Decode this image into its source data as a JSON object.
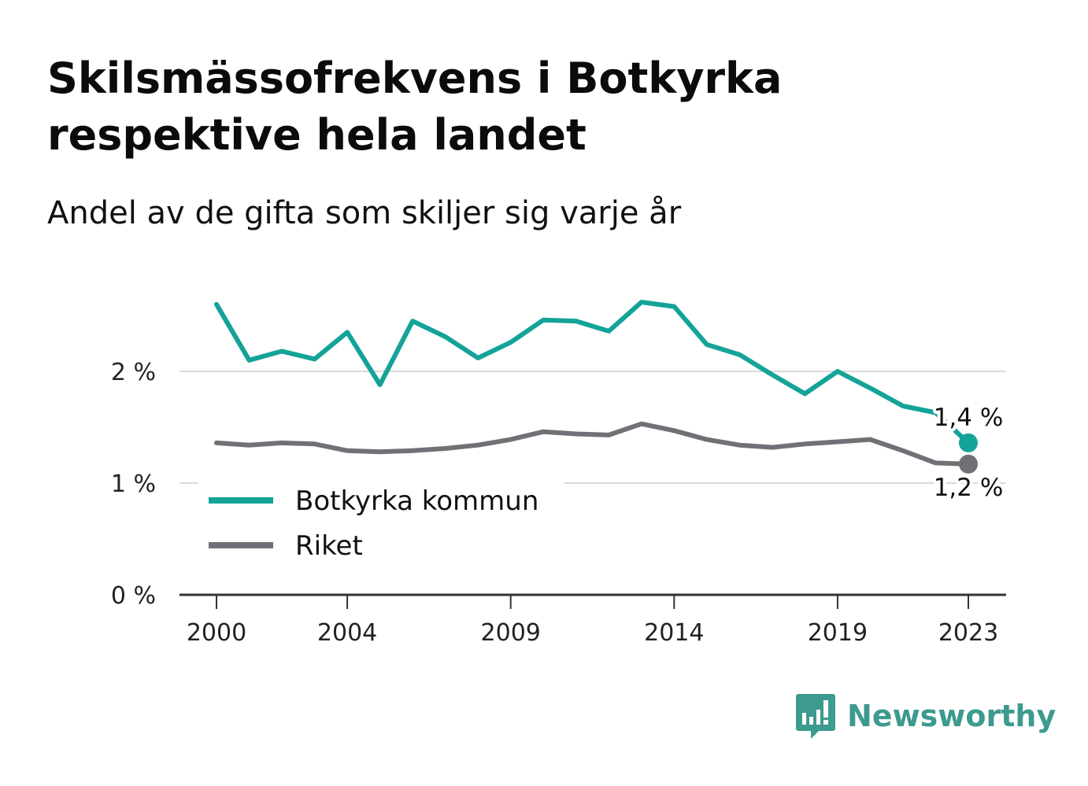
{
  "header": {
    "title": "Skilsmässofrekvens i Botkyrka respektive hela landet",
    "subtitle": "Andel av de gifta som skiljer sig varje år"
  },
  "brand": {
    "name": "Newsworthy",
    "icon": "newsworthy-logo-icon",
    "color": "#3d9a8e"
  },
  "chart_data": {
    "type": "line",
    "x": [
      2000,
      2001,
      2002,
      2003,
      2004,
      2005,
      2006,
      2007,
      2008,
      2009,
      2010,
      2011,
      2012,
      2013,
      2014,
      2015,
      2016,
      2017,
      2018,
      2019,
      2020,
      2021,
      2022,
      2023
    ],
    "x_tick_labels": [
      "2000",
      "2004",
      "2009",
      "2014",
      "2019",
      "2023"
    ],
    "x_ticks": [
      2000,
      2004,
      2009,
      2014,
      2019,
      2023
    ],
    "y_tick_labels": [
      "0 %",
      "1 %",
      "2 %"
    ],
    "y_ticks": [
      0,
      1,
      2
    ],
    "ylim": [
      0,
      2.75
    ],
    "grid": true,
    "legend_position": "bottom-left",
    "series": [
      {
        "name": "Botkyrka kommun",
        "color": "#14a398",
        "values": [
          2.6,
          2.1,
          2.18,
          2.11,
          2.35,
          1.88,
          2.45,
          2.31,
          2.12,
          2.26,
          2.46,
          2.45,
          2.36,
          2.62,
          2.58,
          2.24,
          2.15,
          1.97,
          1.8,
          2.0,
          1.85,
          1.69,
          1.63,
          1.36
        ],
        "end_label": "1,4 %"
      },
      {
        "name": "Riket",
        "color": "#707076",
        "values": [
          1.36,
          1.34,
          1.36,
          1.35,
          1.29,
          1.28,
          1.29,
          1.31,
          1.34,
          1.39,
          1.46,
          1.44,
          1.43,
          1.53,
          1.47,
          1.39,
          1.34,
          1.32,
          1.35,
          1.37,
          1.39,
          1.29,
          1.18,
          1.17
        ],
        "end_label": "1,2 %"
      }
    ]
  }
}
